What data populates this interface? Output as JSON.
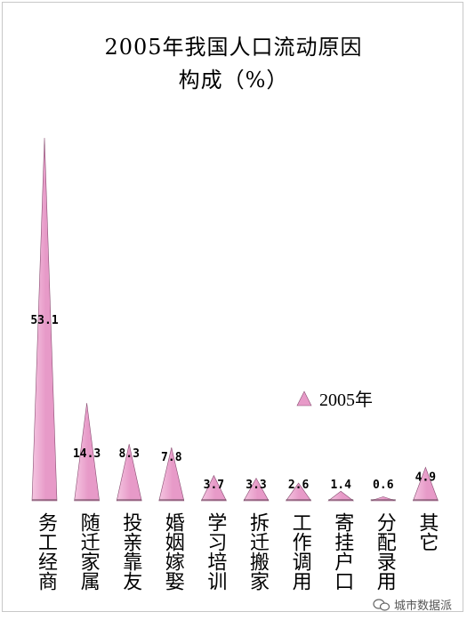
{
  "chart_data": {
    "type": "bar",
    "title_line1": "2005年我国人口流动原因",
    "title_line2": "构成（%）",
    "categories": [
      "务工经商",
      "随迁家属",
      "投亲靠友",
      "婚姻嫁娶",
      "学习培训",
      "拆迁搬家",
      "工作调用",
      "寄挂户口",
      "分配录用",
      "其它"
    ],
    "series": [
      {
        "name": "2005年",
        "values": [
          53.1,
          14.3,
          8.3,
          7.8,
          3.7,
          3.3,
          2.6,
          1.4,
          0.6,
          4.9
        ]
      }
    ],
    "data_labels": [
      "53.1",
      "14.3",
      "8.3",
      "7.8",
      "3.7",
      "3.3",
      "2.6",
      "1.4",
      "0.6",
      "4.9"
    ],
    "ylim": [
      0,
      53.1
    ],
    "grid": false,
    "legend_position": "right-middle",
    "bar_shape": "triangle",
    "colors": {
      "fill": "#e79ac8",
      "fill_light": "#f5c6e1",
      "edge": "#8a4f73"
    }
  },
  "watermark": {
    "text": "城市数据派",
    "icon": "wechat-icon"
  }
}
